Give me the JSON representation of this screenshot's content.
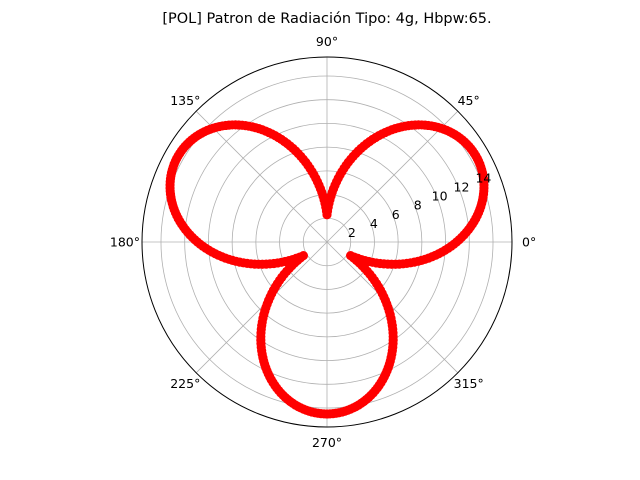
{
  "chart_data": {
    "type": "polar-scatter",
    "title": "[POL] Patron de Radiación Tipo: 4g, Hbpw:65.",
    "angle_ticks": [
      {
        "deg": 0,
        "label": "0°"
      },
      {
        "deg": 45,
        "label": "45°"
      },
      {
        "deg": 90,
        "label": "90°"
      },
      {
        "deg": 135,
        "label": "135°"
      },
      {
        "deg": 180,
        "label": "180°"
      },
      {
        "deg": 225,
        "label": "225°"
      },
      {
        "deg": 270,
        "label": "270°"
      },
      {
        "deg": 315,
        "label": "315°"
      }
    ],
    "radial_ticks": [
      {
        "value": 2,
        "label": "2"
      },
      {
        "value": 4,
        "label": "4"
      },
      {
        "value": 6,
        "label": "6"
      },
      {
        "value": 8,
        "label": "8"
      },
      {
        "value": 10,
        "label": "10"
      },
      {
        "value": 12,
        "label": "12"
      },
      {
        "value": 14,
        "label": "14"
      }
    ],
    "rlim": [
      0,
      15.6
    ],
    "radial_label_angle_deg": 22.5,
    "grid": true,
    "series": [
      {
        "color": "#ff0000",
        "marker": "circle",
        "r_min": 2.3,
        "r_max": 14.5,
        "lobes": 3,
        "lobe_center_deg": 30,
        "r_formula": "r = r_min + (r_max - r_min) * |cos(1.5 * (theta - 30deg))|",
        "sample_step_deg": 1,
        "sample_points": [
          {
            "theta": 30,
            "r": 14.5
          },
          {
            "theta": 90,
            "r": 2.3
          },
          {
            "theta": 150,
            "r": 14.5
          },
          {
            "theta": 210,
            "r": 2.3
          },
          {
            "theta": 270,
            "r": 14.5
          },
          {
            "theta": 330,
            "r": 2.3
          }
        ]
      }
    ]
  }
}
